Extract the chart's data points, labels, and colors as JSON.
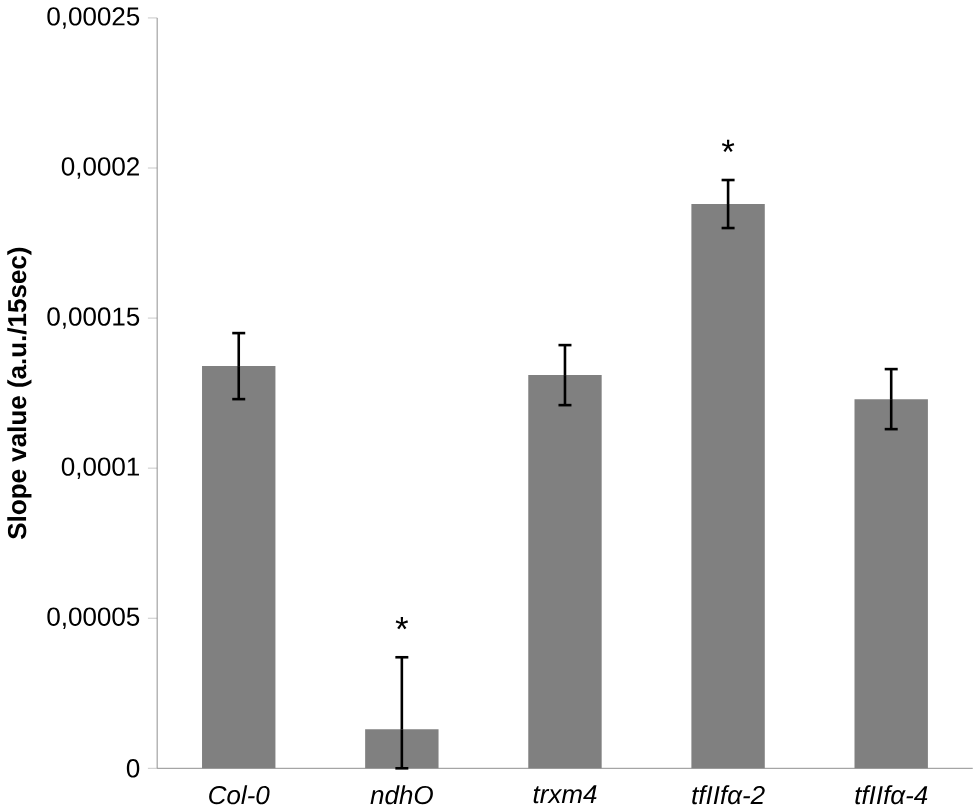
{
  "chart_data": {
    "type": "bar",
    "ylabel": "Slope value (a.u./15sec)",
    "categories": [
      "Col-0",
      "ndhO",
      "trxm4",
      "tfIIfα-2",
      "tfIIfα-4"
    ],
    "values": [
      0.000134,
      1.3e-05,
      0.000131,
      0.000188,
      0.000123
    ],
    "errors": [
      1.1e-05,
      [
        0,
        3.7e-05
      ],
      1e-05,
      8e-06,
      1e-05
    ],
    "value_labels": [
      null,
      "*",
      null,
      "*",
      null
    ],
    "color": "#808080",
    "ylim": [
      0,
      0.00025
    ],
    "yticks": [
      0,
      {
        "value": 5e-05,
        "label": "0,00005"
      },
      {
        "value": 0.0001,
        "label": "0,0001"
      },
      {
        "value": 0.00015,
        "label": "0,00015"
      },
      {
        "value": 0.0002,
        "label": "0,0002"
      },
      {
        "value": 0.00025,
        "label": "0,00025"
      }
    ],
    "grid": false
  }
}
